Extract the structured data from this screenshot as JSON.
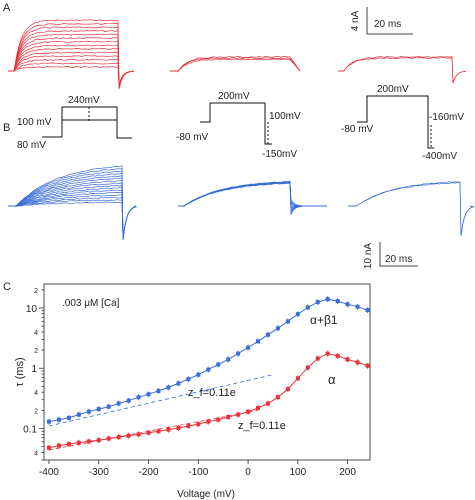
{
  "panels": {
    "A": "A",
    "B": "B",
    "C": "C"
  },
  "scale_bars": {
    "a_current": "4 nA",
    "a_time": "20 ms",
    "b_current": "10 nA",
    "b_time": "20 ms"
  },
  "protocols": [
    {
      "label_top": "240mV",
      "label_hold": "100 mV",
      "label_base": "80 mV"
    },
    {
      "label_top": "200mV",
      "label_hold": "-80 mV",
      "label_right": "100mV",
      "label_bottom": "-150mV"
    },
    {
      "label_top": "200mV",
      "label_hold": "-80 mV",
      "label_right": "-160mV",
      "label_bottom": "-400mV"
    }
  ],
  "colors": {
    "alpha": "#e8323c",
    "alpha_beta1": "#3a6fd8",
    "axis": "#222222"
  },
  "chart_data": {
    "type": "scatter",
    "annotation": ".003 μM [Ca]",
    "xlabel": "Voltage (mV)",
    "ylabel": "τ (ms)",
    "xlim": [
      -410,
      245
    ],
    "ylim": [
      0.03,
      25
    ],
    "yscale": "log",
    "x_ticks": [
      -400,
      -300,
      -200,
      -100,
      0,
      100,
      200
    ],
    "y_major_ticks": [
      0.1,
      1,
      10
    ],
    "y_minor_labels": [
      {
        "value": 0.04,
        "label": "4"
      },
      {
        "value": 0.2,
        "label": "2"
      },
      {
        "value": 0.4,
        "label": "4"
      },
      {
        "value": 2,
        "label": "2"
      },
      {
        "value": 4,
        "label": "4"
      },
      {
        "value": 20,
        "label": "2"
      }
    ],
    "series": [
      {
        "name": "α+β1",
        "fit_label": "z_f=0.11e",
        "x": [
          -400,
          -380,
          -360,
          -340,
          -320,
          -300,
          -280,
          -260,
          -240,
          -220,
          -200,
          -180,
          -160,
          -140,
          -120,
          -100,
          -80,
          -60,
          -40,
          -20,
          0,
          20,
          40,
          60,
          80,
          100,
          120,
          140,
          160,
          180,
          200,
          220,
          240
        ],
        "y": [
          0.13,
          0.14,
          0.15,
          0.17,
          0.19,
          0.21,
          0.23,
          0.26,
          0.29,
          0.33,
          0.37,
          0.42,
          0.48,
          0.56,
          0.66,
          0.78,
          0.95,
          1.15,
          1.4,
          1.75,
          2.2,
          2.8,
          3.6,
          4.6,
          6.0,
          7.9,
          10.2,
          12.5,
          14.0,
          13.0,
          11.5,
          10.5,
          9.2
        ]
      },
      {
        "name": "α",
        "fit_label": "z_f=0.11e",
        "x": [
          -400,
          -380,
          -360,
          -340,
          -320,
          -300,
          -280,
          -260,
          -240,
          -220,
          -200,
          -180,
          -160,
          -140,
          -120,
          -100,
          -80,
          -60,
          -40,
          -20,
          0,
          20,
          40,
          60,
          80,
          100,
          120,
          140,
          160,
          180,
          200,
          220,
          240
        ],
        "y": [
          0.048,
          0.052,
          0.055,
          0.058,
          0.061,
          0.064,
          0.068,
          0.072,
          0.076,
          0.08,
          0.085,
          0.09,
          0.096,
          0.102,
          0.11,
          0.118,
          0.13,
          0.14,
          0.155,
          0.17,
          0.19,
          0.22,
          0.26,
          0.33,
          0.45,
          0.68,
          1.02,
          1.45,
          1.75,
          1.6,
          1.4,
          1.25,
          1.1
        ]
      }
    ]
  }
}
